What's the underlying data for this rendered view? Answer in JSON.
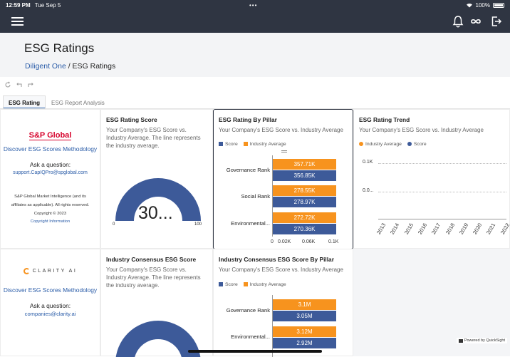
{
  "status": {
    "time": "12:59 PM",
    "date": "Tue Sep 5",
    "dots": "•••",
    "battery": "100%"
  },
  "header": {
    "title": "ESG Ratings",
    "breadcrumb_link": "Diligent One",
    "breadcrumb_sep": " / ",
    "breadcrumb_current": "ESG Ratings"
  },
  "tabs": [
    {
      "label": "ESG Rating"
    },
    {
      "label": "ESG Report Analysis"
    }
  ],
  "sp_panel": {
    "logo": "S&P Global",
    "method_link": "Discover ESG Scores Methodology",
    "ask": "Ask a question:",
    "email": "support.CapIQPro@spglobal.com",
    "disclaimer1": "S&P Global Market Intelligence (and its",
    "disclaimer2": "affiliates as applicable). All rights reserved.",
    "copyright": "Copyright © 2023",
    "copyright_link": "Copyright Information"
  },
  "clarity_panel": {
    "logo": "CLARITY AI",
    "method_link": "Discover ESG Scores Methodology",
    "ask": "Ask a question:",
    "email": "companies@clarity.ai"
  },
  "rating_score": {
    "title": "ESG Rating Score",
    "subtitle": "Your Company's ESG Score vs. Industry Average. The line represents the industry average.",
    "value": "30...",
    "min": "0",
    "max": "100",
    "gauge_fraction": 1.0
  },
  "rating_pillar": {
    "title": "ESG Rating By Pillar",
    "subtitle": "Your Company's ESG Score vs. Industry Average",
    "legend": {
      "score": "Score",
      "industry": "Industry Average"
    },
    "x_ticks": [
      "0",
      "0.02K",
      "0.06K",
      "0.1K"
    ],
    "rows": [
      {
        "label": "Governance Rank",
        "industry": "357.71K",
        "score": "356.85K"
      },
      {
        "label": "Social Rank",
        "industry": "278.55K",
        "score": "278.97K"
      },
      {
        "label": "Environmental...",
        "industry": "272.72K",
        "score": "270.36K"
      }
    ]
  },
  "rating_trend": {
    "title": "ESG Rating Trend",
    "subtitle": "Your Company's ESG Score vs. Industry Average",
    "legend": {
      "industry": "Industry Average",
      "score": "Score"
    },
    "y_ticks": [
      "0.1K",
      "0.0..."
    ],
    "x_ticks": [
      "2013",
      "2014",
      "2015",
      "2016",
      "2017",
      "2018",
      "2019",
      "2020",
      "2021",
      "2022"
    ]
  },
  "consensus_score": {
    "title": "Industry Consensus ESG Score",
    "subtitle": "Your Company's ESG Score vs. Industry Average. The line represents the industry average."
  },
  "consensus_pillar": {
    "title": "Industry Consensus ESG Score By Pillar",
    "subtitle": "Your Company's ESG Score vs. Industry Average",
    "legend": {
      "score": "Score",
      "industry": "Industry Average"
    },
    "rows": [
      {
        "label": "Governance Rank",
        "industry": "3.1M",
        "score": "3.05M"
      },
      {
        "label": "Environmental...",
        "industry": "3.12M",
        "score": "2.92M"
      }
    ]
  },
  "footer": {
    "powered": "Powered by QuickSight"
  },
  "colors": {
    "nav": "#2f3542",
    "orange": "#f7931e",
    "blue": "#3d5a99",
    "link": "#2a5ca8"
  }
}
